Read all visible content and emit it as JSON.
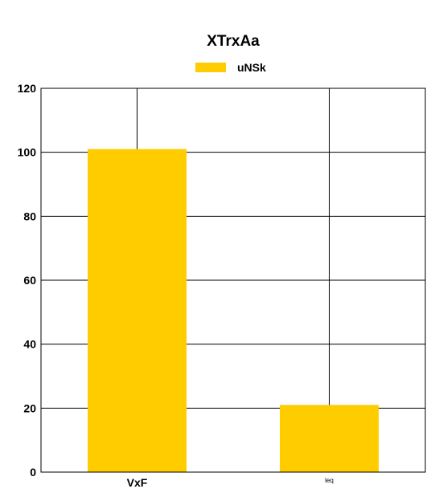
{
  "chart_data": {
    "type": "bar",
    "title": "XTrxAa",
    "categories": [
      "VxF",
      "leq"
    ],
    "series": [
      {
        "name": "uNSk",
        "values": [
          101,
          21
        ]
      }
    ],
    "ylim": [
      0,
      120
    ],
    "yticks": [
      0,
      20,
      40,
      60,
      80,
      100,
      120
    ],
    "grid": true,
    "legend": "top-center",
    "colors": {
      "bar": "#FFCC00",
      "grid": "#000000"
    }
  }
}
